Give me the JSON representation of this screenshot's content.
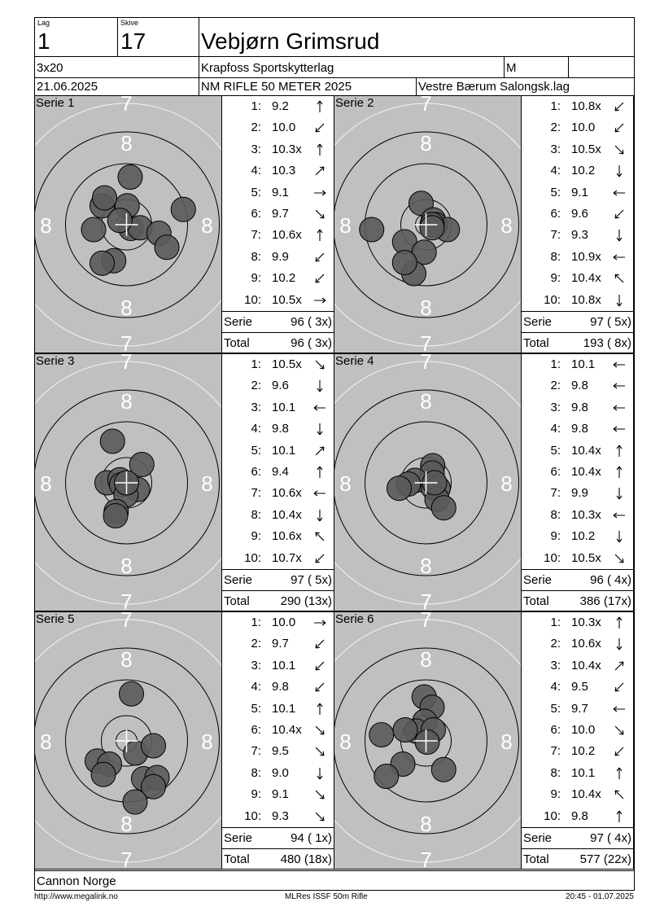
{
  "header": {
    "lag_label": "Lag",
    "lag_value": "1",
    "skive_label": "Skive",
    "skive_value": "17",
    "shooter_name": "Vebjørn Grimsrud",
    "program": "3x20",
    "club": "Krapfoss Sportskytterlag",
    "class": "M",
    "class_extra": "",
    "date": "21.06.2025",
    "competition": "NM RIFLE 50 METER 2025",
    "organizer": "Vestre Bærum Salongsk.lag"
  },
  "ring_labels": {
    "seven": "7",
    "eight": "8"
  },
  "series": [
    {
      "label": "Serie 1",
      "shots": [
        {
          "num": "1:",
          "value": "9.2",
          "dir": "N"
        },
        {
          "num": "2:",
          "value": "10.0",
          "dir": "SW"
        },
        {
          "num": "3:",
          "value": "10.3x",
          "dir": "N"
        },
        {
          "num": "4:",
          "value": "10.3",
          "dir": "NE"
        },
        {
          "num": "5:",
          "value": "9.1",
          "dir": "E"
        },
        {
          "num": "6:",
          "value": "9.7",
          "dir": "SE"
        },
        {
          "num": "7:",
          "value": "10.6x",
          "dir": "N"
        },
        {
          "num": "8:",
          "value": "9.9",
          "dir": "SW"
        },
        {
          "num": "9:",
          "value": "10.2",
          "dir": "SW"
        },
        {
          "num": "10:",
          "value": "10.5x",
          "dir": "E"
        }
      ],
      "serie_label": "Serie",
      "serie_value": "96 ( 3x)",
      "total_label": "Total",
      "total_value": "96 ( 3x)",
      "holes": [
        [
          -0.21,
          0.59
        ],
        [
          0.07,
          0.06
        ],
        [
          -0.54,
          0.08
        ],
        [
          0.06,
          -0.78
        ],
        [
          0.22,
          0.05
        ],
        [
          0.53,
          0.14
        ],
        [
          -0.4,
          -0.31
        ],
        [
          0.01,
          -0.31
        ],
        [
          -0.11,
          -0.07
        ],
        [
          0.93,
          -0.25
        ],
        [
          -0.36,
          -0.44
        ],
        [
          0.66,
          0.37
        ],
        [
          -0.4,
          0.63
        ]
      ]
    },
    {
      "label": "Serie 2",
      "shots": [
        {
          "num": "1:",
          "value": "10.8x",
          "dir": "SW"
        },
        {
          "num": "2:",
          "value": "10.0",
          "dir": "SW"
        },
        {
          "num": "3:",
          "value": "10.5x",
          "dir": "SE"
        },
        {
          "num": "4:",
          "value": "10.2",
          "dir": "S"
        },
        {
          "num": "5:",
          "value": "9.1",
          "dir": "W"
        },
        {
          "num": "6:",
          "value": "9.6",
          "dir": "SW"
        },
        {
          "num": "7:",
          "value": "9.3",
          "dir": "S"
        },
        {
          "num": "8:",
          "value": "10.9x",
          "dir": "W"
        },
        {
          "num": "9:",
          "value": "10.4x",
          "dir": "NW"
        },
        {
          "num": "10:",
          "value": "10.8x",
          "dir": "S"
        }
      ],
      "serie_label": "Serie",
      "serie_value": "97 ( 5x)",
      "total_label": "Total",
      "total_value": "193 ( 8x)",
      "holes": [
        [
          -0.08,
          -0.35
        ],
        [
          0.12,
          -0.08
        ],
        [
          -0.35,
          0.28
        ],
        [
          0.16,
          0.0
        ],
        [
          -0.89,
          0.08
        ],
        [
          0.35,
          0.08
        ],
        [
          -0.03,
          0.45
        ],
        [
          0.1,
          0.0
        ],
        [
          0.1,
          0.05
        ],
        [
          -0.2,
          0.8
        ],
        [
          -0.35,
          0.62
        ]
      ]
    },
    {
      "label": "Serie 3",
      "shots": [
        {
          "num": "1:",
          "value": "10.5x",
          "dir": "SE"
        },
        {
          "num": "2:",
          "value": "9.6",
          "dir": "S"
        },
        {
          "num": "3:",
          "value": "10.1",
          "dir": "W"
        },
        {
          "num": "4:",
          "value": "9.8",
          "dir": "S"
        },
        {
          "num": "5:",
          "value": "10.1",
          "dir": "NE"
        },
        {
          "num": "6:",
          "value": "9.4",
          "dir": "N"
        },
        {
          "num": "7:",
          "value": "10.6x",
          "dir": "W"
        },
        {
          "num": "8:",
          "value": "10.4x",
          "dir": "S"
        },
        {
          "num": "9:",
          "value": "10.6x",
          "dir": "NW"
        },
        {
          "num": "10:",
          "value": "10.7x",
          "dir": "SW"
        }
      ],
      "serie_label": "Serie",
      "serie_value": "97 ( 5x)",
      "total_label": "Total",
      "total_value": "290 (13x)",
      "holes": [
        [
          -0.23,
          -0.68
        ],
        [
          0.25,
          -0.3
        ],
        [
          -0.32,
          0.0
        ],
        [
          -0.11,
          -0.05
        ],
        [
          -0.08,
          0.03
        ],
        [
          0.18,
          0.11
        ],
        [
          -0.01,
          0.2
        ],
        [
          -0.17,
          0.47
        ],
        [
          -0.18,
          0.54
        ],
        [
          0.0,
          0.0
        ]
      ]
    },
    {
      "label": "Serie 4",
      "shots": [
        {
          "num": "1:",
          "value": "10.1",
          "dir": "W"
        },
        {
          "num": "2:",
          "value": "9.8",
          "dir": "W"
        },
        {
          "num": "3:",
          "value": "9.8",
          "dir": "W"
        },
        {
          "num": "4:",
          "value": "9.8",
          "dir": "W"
        },
        {
          "num": "5:",
          "value": "10.4x",
          "dir": "N"
        },
        {
          "num": "6:",
          "value": "10.4x",
          "dir": "N"
        },
        {
          "num": "7:",
          "value": "9.9",
          "dir": "S"
        },
        {
          "num": "8:",
          "value": "10.3x",
          "dir": "W"
        },
        {
          "num": "9:",
          "value": "10.2",
          "dir": "S"
        },
        {
          "num": "10:",
          "value": "10.5x",
          "dir": "SE"
        }
      ],
      "serie_label": "Serie",
      "serie_value": "96 ( 4x)",
      "total_label": "Total",
      "total_value": "386 (17x)",
      "holes": [
        [
          0.11,
          -0.28
        ],
        [
          0.1,
          -0.16
        ],
        [
          -0.18,
          -0.04
        ],
        [
          -0.29,
          0.02
        ],
        [
          -0.44,
          0.09
        ],
        [
          0.12,
          0.08
        ],
        [
          0.2,
          0.09
        ],
        [
          0.18,
          0.27
        ],
        [
          0.29,
          0.41
        ],
        [
          0.14,
          0.0
        ]
      ]
    },
    {
      "label": "Serie 5",
      "shots": [
        {
          "num": "1:",
          "value": "10.0",
          "dir": "E"
        },
        {
          "num": "2:",
          "value": "9.7",
          "dir": "SW"
        },
        {
          "num": "3:",
          "value": "10.1",
          "dir": "SW"
        },
        {
          "num": "4:",
          "value": "9.8",
          "dir": "SW"
        },
        {
          "num": "5:",
          "value": "10.1",
          "dir": "N"
        },
        {
          "num": "6:",
          "value": "10.4x",
          "dir": "SE"
        },
        {
          "num": "7:",
          "value": "9.5",
          "dir": "SE"
        },
        {
          "num": "8:",
          "value": "9.0",
          "dir": "S"
        },
        {
          "num": "9:",
          "value": "9.1",
          "dir": "SE"
        },
        {
          "num": "10:",
          "value": "9.3",
          "dir": "SE"
        }
      ],
      "serie_label": "Serie",
      "serie_value": "94 ( 1x)",
      "total_label": "Total",
      "total_value": "480 (18x)",
      "holes": [
        [
          0.08,
          -0.77
        ],
        [
          -0.48,
          0.33
        ],
        [
          -0.28,
          0.38
        ],
        [
          0.15,
          0.2
        ],
        [
          0.44,
          0.08
        ],
        [
          -0.38,
          0.55
        ],
        [
          0.28,
          0.62
        ],
        [
          0.5,
          0.6
        ],
        [
          0.44,
          0.75
        ],
        [
          0.14,
          1.0
        ]
      ]
    },
    {
      "label": "Serie 6",
      "shots": [
        {
          "num": "1:",
          "value": "10.3x",
          "dir": "N"
        },
        {
          "num": "2:",
          "value": "10.6x",
          "dir": "S"
        },
        {
          "num": "3:",
          "value": "10.4x",
          "dir": "NE"
        },
        {
          "num": "4:",
          "value": "9.5",
          "dir": "SW"
        },
        {
          "num": "5:",
          "value": "9.7",
          "dir": "W"
        },
        {
          "num": "6:",
          "value": "10.0",
          "dir": "SE"
        },
        {
          "num": "7:",
          "value": "10.2",
          "dir": "SW"
        },
        {
          "num": "8:",
          "value": "10.1",
          "dir": "N"
        },
        {
          "num": "9:",
          "value": "10.4x",
          "dir": "NW"
        },
        {
          "num": "10:",
          "value": "9.8",
          "dir": "N"
        }
      ],
      "serie_label": "Serie",
      "serie_value": "97 ( 4x)",
      "total_label": "Total",
      "total_value": "577 (22x)",
      "holes": [
        [
          -0.03,
          -0.72
        ],
        [
          0.1,
          -0.55
        ],
        [
          -0.02,
          -0.32
        ],
        [
          -0.16,
          -0.16
        ],
        [
          -0.34,
          -0.18
        ],
        [
          -0.73,
          -0.1
        ],
        [
          0.12,
          -0.18
        ],
        [
          0.02,
          0.02
        ],
        [
          -0.38,
          0.38
        ],
        [
          -0.65,
          0.58
        ],
        [
          0.29,
          0.47
        ]
      ]
    }
  ],
  "footer": {
    "sponsor": "Cannon Norge",
    "url": "http://www.megalink.no",
    "software": "MLRes ISSF 50m Rifle",
    "printed": "20:45 - 01.07.2025"
  }
}
